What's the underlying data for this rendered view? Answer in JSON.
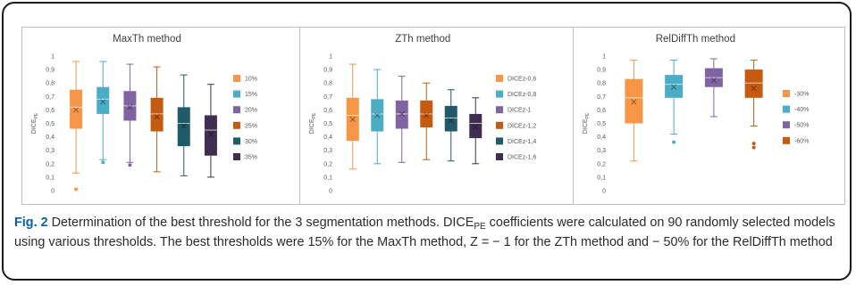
{
  "caption": {
    "label": "Fig. 2",
    "text_1": " Determination of the best threshold for the 3 segmentation methods. DICE",
    "text_sub": "PE",
    "text_2": " coefficients were calculated on 90 randomly selected models using various thresholds. The best thresholds were 15% for the MaxTh method, Z = − 1 for the ZTh method and − 50% for the RelDiffTh method"
  },
  "chart_data": [
    {
      "type": "boxplot",
      "title": "MaxTh method",
      "ylabel_main": "DICE",
      "ylabel_sub": "PE",
      "ylim": [
        0,
        1
      ],
      "yticks": [
        "0",
        "0,1",
        "0,2",
        "0,3",
        "0,4",
        "0,5",
        "0,6",
        "0,7",
        "0,8",
        "0,9",
        "1"
      ],
      "legend_position": "right",
      "series": [
        {
          "name": "10%",
          "color": "#F79646",
          "min": 0.13,
          "q1": 0.46,
          "median": 0.62,
          "mean": 0.6,
          "q3": 0.75,
          "max": 0.96,
          "outliers": [
            0.01
          ]
        },
        {
          "name": "15%",
          "color": "#4BACC6",
          "min": 0.23,
          "q1": 0.57,
          "median": 0.68,
          "mean": 0.66,
          "q3": 0.77,
          "max": 0.96,
          "outliers": [
            0.21
          ]
        },
        {
          "name": "20%",
          "color": "#8064A2",
          "min": 0.21,
          "q1": 0.52,
          "median": 0.63,
          "mean": 0.62,
          "q3": 0.74,
          "max": 0.94,
          "outliers": [
            0.19
          ]
        },
        {
          "name": "25%",
          "color": "#C55A11",
          "min": 0.14,
          "q1": 0.44,
          "median": 0.57,
          "mean": 0.55,
          "q3": 0.69,
          "max": 0.92,
          "outliers": []
        },
        {
          "name": "30%",
          "color": "#215A69",
          "min": 0.11,
          "q1": 0.33,
          "median": 0.5,
          "mean": 0.48,
          "q3": 0.62,
          "max": 0.86,
          "outliers": []
        },
        {
          "name": "35%",
          "color": "#3F2E52",
          "min": 0.1,
          "q1": 0.26,
          "median": 0.45,
          "mean": 0.42,
          "q3": 0.56,
          "max": 0.79,
          "outliers": []
        }
      ]
    },
    {
      "type": "boxplot",
      "title": "ZTh method",
      "ylabel_main": "DICE",
      "ylabel_sub": "PE",
      "ylim": [
        0,
        1
      ],
      "yticks": [
        "0",
        "0,1",
        "0,2",
        "0,3",
        "0,4",
        "0,5",
        "0,6",
        "0,7",
        "0,8",
        "0,9",
        "1"
      ],
      "legend_position": "right",
      "series": [
        {
          "name": "DICEz-0,6",
          "color": "#F79646",
          "min": 0.16,
          "q1": 0.37,
          "median": 0.56,
          "mean": 0.53,
          "q3": 0.69,
          "max": 0.94,
          "outliers": []
        },
        {
          "name": "DICEz-0,8",
          "color": "#4BACC6",
          "min": 0.2,
          "q1": 0.44,
          "median": 0.57,
          "mean": 0.56,
          "q3": 0.68,
          "max": 0.9,
          "outliers": []
        },
        {
          "name": "DICEz-1",
          "color": "#8064A2",
          "min": 0.21,
          "q1": 0.46,
          "median": 0.57,
          "mean": 0.57,
          "q3": 0.67,
          "max": 0.85,
          "outliers": []
        },
        {
          "name": "DICEz-1,2",
          "color": "#C55A11",
          "min": 0.23,
          "q1": 0.47,
          "median": 0.57,
          "mean": 0.56,
          "q3": 0.67,
          "max": 0.8,
          "outliers": []
        },
        {
          "name": "DICEz-1,4",
          "color": "#215A69",
          "min": 0.22,
          "q1": 0.44,
          "median": 0.54,
          "mean": 0.52,
          "q3": 0.63,
          "max": 0.75,
          "outliers": []
        },
        {
          "name": "DICEz-1,6",
          "color": "#3F2E52",
          "min": 0.2,
          "q1": 0.39,
          "median": 0.5,
          "mean": 0.47,
          "q3": 0.57,
          "max": 0.69,
          "outliers": []
        }
      ]
    },
    {
      "type": "boxplot",
      "title": "RelDiffTh method",
      "ylabel_main": "DICE",
      "ylabel_sub": "PE",
      "ylim": [
        0,
        1
      ],
      "yticks": [
        "0",
        "0,1",
        "0,2",
        "0,3",
        "0,4",
        "0,5",
        "0,6",
        "0,7",
        "0,8",
        "0,9",
        "1"
      ],
      "legend_position": "right",
      "series": [
        {
          "name": "-30%",
          "color": "#F79646",
          "min": 0.22,
          "q1": 0.5,
          "median": 0.69,
          "mean": 0.66,
          "q3": 0.83,
          "max": 0.97,
          "outliers": []
        },
        {
          "name": "-40%",
          "color": "#4BACC6",
          "min": 0.42,
          "q1": 0.69,
          "median": 0.79,
          "mean": 0.77,
          "q3": 0.86,
          "max": 0.97,
          "outliers": [
            0.36
          ]
        },
        {
          "name": "-50%",
          "color": "#8064A2",
          "min": 0.55,
          "q1": 0.77,
          "median": 0.84,
          "mean": 0.82,
          "q3": 0.91,
          "max": 0.98,
          "outliers": []
        },
        {
          "name": "-60%",
          "color": "#C55A11",
          "min": 0.48,
          "q1": 0.69,
          "median": 0.8,
          "mean": 0.76,
          "q3": 0.9,
          "max": 0.97,
          "outliers": [
            0.35,
            0.32
          ]
        }
      ]
    }
  ]
}
